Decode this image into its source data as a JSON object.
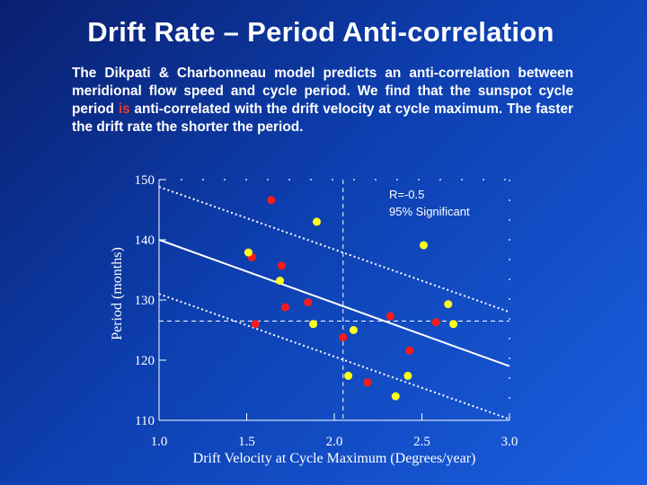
{
  "slide": {
    "title": "Drift Rate – Period Anti-correlation",
    "body_before": "The Dikpati & Charbonneau model predicts an anti-correlation between meridional flow speed and cycle period. We find that the sunspot cycle period ",
    "body_highlight": "is",
    "body_after": " anti-correlated with the drift velocity at cycle maximum. The faster the drift rate the shorter the period."
  },
  "colors": {
    "highlight": "#e33a2a",
    "red_points": "#ff1a1a",
    "yellow_points": "#ffff1a",
    "lines": "#ffffff"
  },
  "chart_data": {
    "type": "scatter",
    "xlabel": "Drift Velocity at Cycle Maximum (Degrees/year)",
    "ylabel": "Period (months)",
    "xlim": [
      1.0,
      3.0
    ],
    "ylim": [
      110,
      150
    ],
    "xticks": [
      "1.0",
      "1.5",
      "2.0",
      "2.5",
      "3.0"
    ],
    "yticks": [
      "110",
      "120",
      "130",
      "140",
      "150"
    ],
    "annotations": [
      "R=-0.5",
      "95% Significant"
    ],
    "reference_lines": {
      "x": 2.05,
      "y": 126.5
    },
    "fit_lines": [
      {
        "style": "solid",
        "points": [
          [
            1.0,
            140.0
          ],
          [
            3.0,
            119.0
          ]
        ]
      },
      {
        "style": "dotted",
        "points": [
          [
            1.0,
            148.8
          ],
          [
            3.0,
            128.0
          ]
        ]
      },
      {
        "style": "dotted",
        "points": [
          [
            1.0,
            131.0
          ],
          [
            3.0,
            110.2
          ]
        ]
      }
    ],
    "series": [
      {
        "color": "red",
        "x": [
          1.64,
          1.53,
          1.7,
          1.72,
          1.85,
          1.55,
          2.05,
          2.19,
          2.32,
          2.43,
          2.58
        ],
        "y": [
          146.6,
          137.1,
          135.7,
          128.8,
          129.6,
          126.0,
          123.8,
          116.3,
          127.3,
          121.6,
          126.3
        ]
      },
      {
        "color": "yellow",
        "x": [
          1.9,
          1.51,
          1.69,
          1.88,
          2.51,
          2.65,
          2.68,
          2.11,
          2.08,
          2.42,
          2.35
        ],
        "y": [
          143.0,
          137.9,
          133.2,
          126.0,
          139.1,
          129.3,
          126.0,
          125.0,
          117.4,
          117.4,
          114.0
        ]
      }
    ]
  }
}
